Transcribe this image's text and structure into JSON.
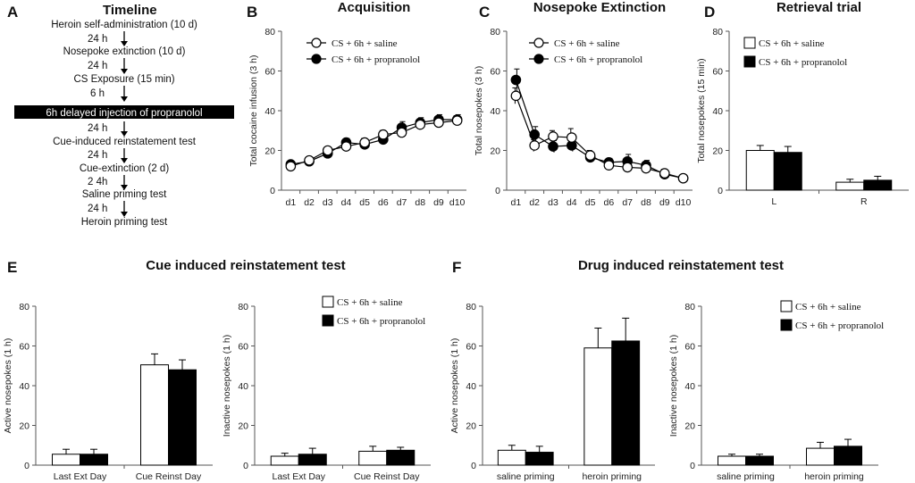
{
  "letters": {
    "a": "A",
    "b": "B",
    "c": "C",
    "d": "D",
    "e": "E",
    "f": "F"
  },
  "timeline": {
    "title": "Timeline",
    "steps": [
      "Heroin self-administration (10 d)",
      "Nosepoke  extinction (10 d)",
      "CS Exposure (15 min)",
      "6h delayed injection of propranolol",
      "Cue-induced reinstatement test",
      "Cue-extinction (2 d)",
      "Saline priming test",
      "Heroin priming test"
    ],
    "intervals": [
      "24 h",
      "24 h",
      "6 h",
      "24 h",
      "24 h",
      "2 4h",
      "24 h"
    ]
  },
  "section_titles": {
    "e": "Cue induced reinstatement test",
    "f": "Drug induced reinstatement test"
  },
  "legend": {
    "saline": "CS + 6h + saline",
    "propranolol": "CS + 6h + propranolol"
  },
  "colors": {
    "saline_fill": "#ffffff",
    "propranolol_fill": "#000000",
    "timeline_bar": "#000000"
  },
  "chart_data": [
    {
      "id": "B",
      "type": "line",
      "title": "Acquisition",
      "ylabel": "Total cocaine infusion (3 h)",
      "xlabel": "",
      "ylim": [
        0,
        80
      ],
      "yticks": [
        0,
        20,
        40,
        60,
        80
      ],
      "categories": [
        "d1",
        "d2",
        "d3",
        "d4",
        "d5",
        "d6",
        "d7",
        "d8",
        "d9",
        "d10"
      ],
      "series": [
        {
          "name": "CS + 6h + saline",
          "values": [
            12,
            15,
            20,
            22,
            24,
            28,
            29,
            33,
            34,
            35
          ],
          "errors": [
            1.5,
            1.5,
            1.5,
            2,
            2,
            2,
            2.5,
            2.5,
            2.5,
            2.5
          ]
        },
        {
          "name": "CS + 6h + propranolol",
          "values": [
            13,
            14.5,
            18.5,
            24,
            23,
            25.5,
            31.5,
            34,
            35.5,
            35.5
          ],
          "errors": [
            1.5,
            1.5,
            1.5,
            2,
            2.5,
            2,
            3,
            2.5,
            2.5,
            2.5
          ]
        }
      ]
    },
    {
      "id": "C",
      "type": "line",
      "title": "Nosepoke Extinction",
      "ylabel": "Total nosepokes (3 h)",
      "xlabel": "",
      "ylim": [
        0,
        80
      ],
      "yticks": [
        0,
        20,
        40,
        60,
        80
      ],
      "categories": [
        "d1",
        "d2",
        "d3",
        "d4",
        "d5",
        "d6",
        "d7",
        "d8",
        "d9",
        "d10"
      ],
      "series": [
        {
          "name": "CS + 6h + saline",
          "values": [
            47.5,
            22.5,
            27,
            26.5,
            17.5,
            12.5,
            11.5,
            11,
            8.5,
            6
          ],
          "errors": [
            4,
            3,
            3,
            4.5,
            2.5,
            2,
            2.5,
            2.5,
            2,
            1.5
          ]
        },
        {
          "name": "CS + 6h + propranolol",
          "values": [
            55.5,
            28,
            22,
            22.5,
            16.5,
            14,
            14.5,
            12.5,
            8,
            6
          ],
          "errors": [
            5.5,
            4,
            3,
            3,
            2,
            2,
            3.5,
            2.5,
            2,
            1.5
          ]
        }
      ]
    },
    {
      "id": "D",
      "type": "bar",
      "title": "Retrieval trial",
      "ylabel": "Total nosepokes (15 min)",
      "xlabel": "",
      "ylim": [
        0,
        80
      ],
      "yticks": [
        0,
        20,
        40,
        60,
        80
      ],
      "categories": [
        "L",
        "R"
      ],
      "series": [
        {
          "name": "CS + 6h + saline",
          "values": [
            20,
            4
          ],
          "errors": [
            2.5,
            1.5
          ]
        },
        {
          "name": "CS + 6h + propranolol",
          "values": [
            19,
            5
          ],
          "errors": [
            3,
            2
          ]
        }
      ]
    },
    {
      "id": "E1",
      "type": "bar",
      "title": "",
      "ylabel": "Active nosepokes (1 h)",
      "xlabel": "",
      "ylim": [
        0,
        80
      ],
      "yticks": [
        0,
        20,
        40,
        60,
        80
      ],
      "categories": [
        "Last Ext Day",
        "Cue Reinst Day"
      ],
      "series": [
        {
          "name": "CS + 6h + saline",
          "values": [
            5.5,
            50.5
          ],
          "errors": [
            2.5,
            5.5
          ]
        },
        {
          "name": "CS + 6h + propranolol",
          "values": [
            5.5,
            48
          ],
          "errors": [
            2.5,
            5
          ]
        }
      ]
    },
    {
      "id": "E2",
      "type": "bar",
      "title": "",
      "ylabel": "Inactive nosepokes (1 h)",
      "xlabel": "",
      "ylim": [
        0,
        80
      ],
      "yticks": [
        0,
        20,
        40,
        60,
        80
      ],
      "categories": [
        "Last Ext Day",
        "Cue Reinst Day"
      ],
      "series": [
        {
          "name": "CS + 6h + saline",
          "values": [
            4.5,
            7
          ],
          "errors": [
            1.5,
            2.5
          ]
        },
        {
          "name": "CS + 6h + propranolol",
          "values": [
            5.5,
            7.5
          ],
          "errors": [
            3,
            1.5
          ]
        }
      ]
    },
    {
      "id": "F1",
      "type": "bar",
      "title": "",
      "ylabel": "Active nosepokes (1 h)",
      "xlabel": "",
      "ylim": [
        0,
        80
      ],
      "yticks": [
        0,
        20,
        40,
        60,
        80
      ],
      "categories": [
        "saline priming",
        "heroin priming"
      ],
      "series": [
        {
          "name": "CS + 6h + saline",
          "values": [
            7.5,
            59
          ],
          "errors": [
            2.5,
            10
          ]
        },
        {
          "name": "CS + 6h + propranolol",
          "values": [
            6.5,
            62.5
          ],
          "errors": [
            3,
            11.5
          ]
        }
      ]
    },
    {
      "id": "F2",
      "type": "bar",
      "title": "",
      "ylabel": "Inactive nosepokes (1 h)",
      "xlabel": "",
      "ylim": [
        0,
        80
      ],
      "yticks": [
        0,
        20,
        40,
        60,
        80
      ],
      "categories": [
        "saline priming",
        "heroin priming"
      ],
      "series": [
        {
          "name": "CS + 6h + saline",
          "values": [
            4.5,
            8.5
          ],
          "errors": [
            1,
            3
          ]
        },
        {
          "name": "CS + 6h + propranolol",
          "values": [
            4.5,
            9.5
          ],
          "errors": [
            1,
            3.5
          ]
        }
      ]
    }
  ]
}
